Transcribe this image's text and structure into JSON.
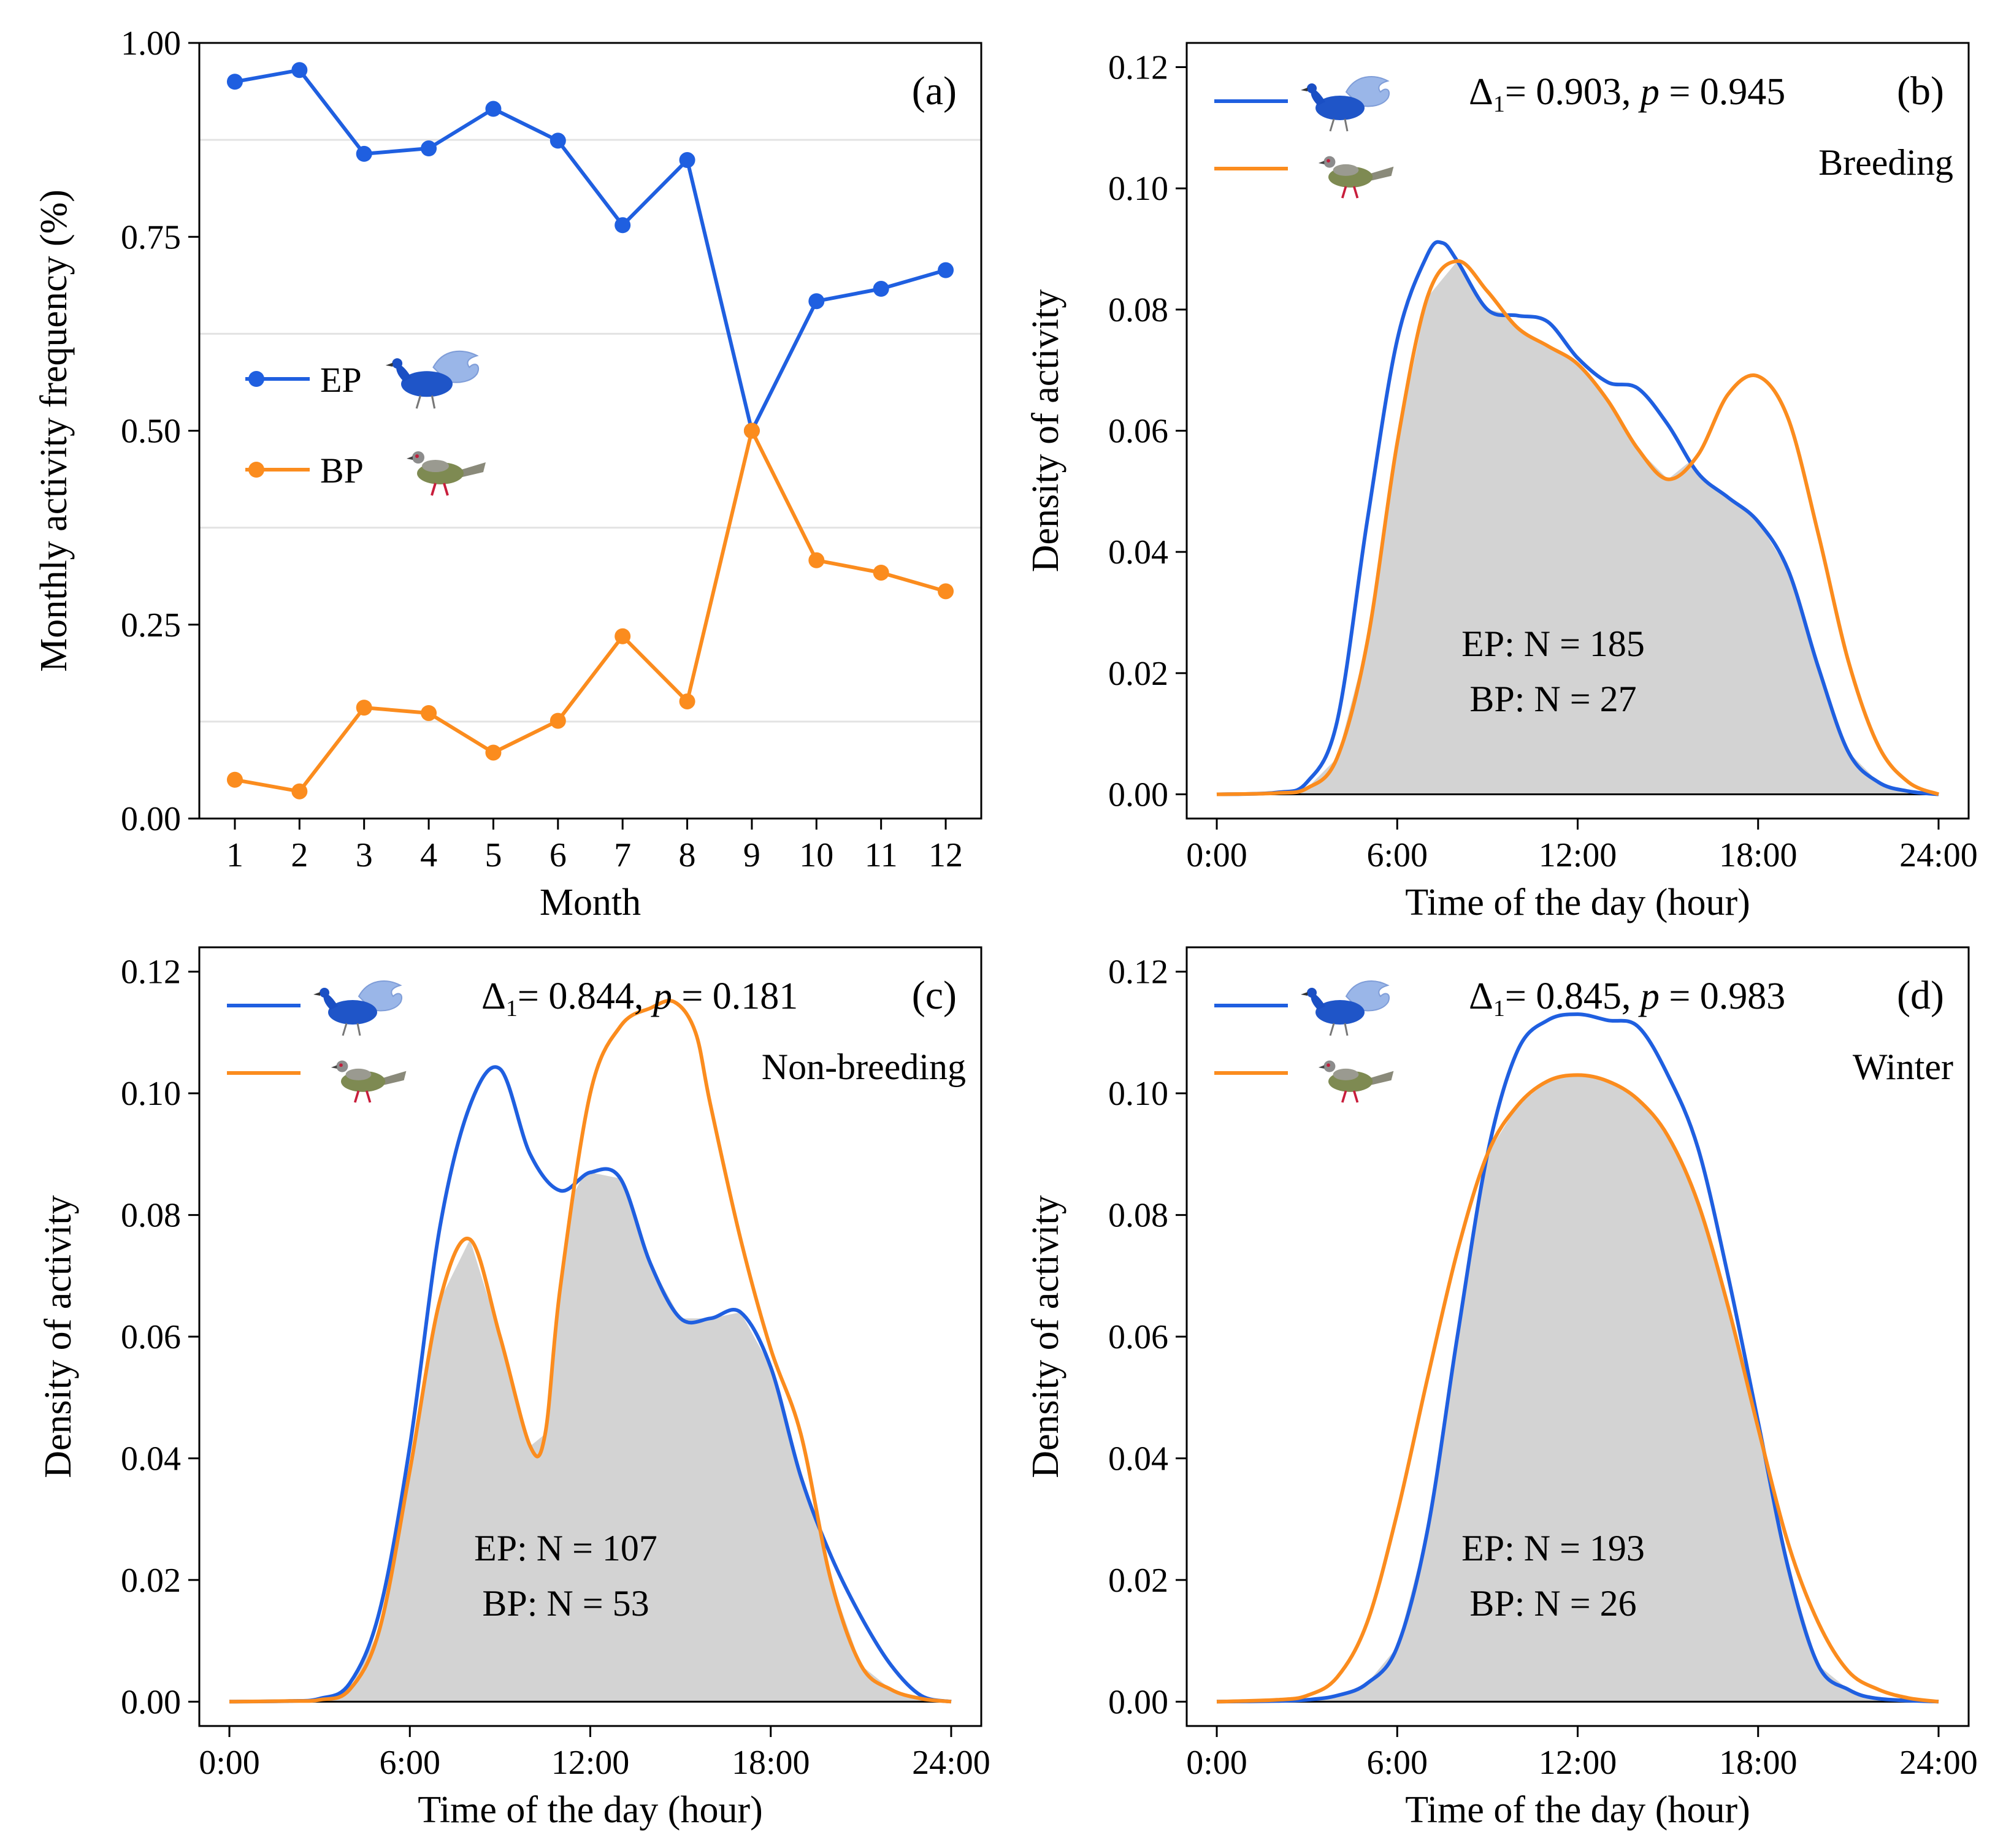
{
  "colors": {
    "ep": "#1f5fe0",
    "bp": "#fb8c1e",
    "overlap": "#d3d3d3",
    "grid": "#e3e3e3",
    "axis": "#000000"
  },
  "icons": {
    "ep": "blue-peafowl-icon",
    "bp": "grey-pheasant-icon"
  },
  "chart_data": [
    {
      "id": "a",
      "type": "line",
      "panel_label": "(a)",
      "xlabel": "Month",
      "ylabel": "Monthly activity frequency (%)",
      "categories": [
        "1",
        "2",
        "3",
        "4",
        "5",
        "6",
        "7",
        "8",
        "9",
        "10",
        "11",
        "12"
      ],
      "xlim": [
        0.45,
        12.55
      ],
      "ylim": [
        0,
        1
      ],
      "yticks": [
        "0.00",
        "0.25",
        "0.50",
        "0.75",
        "1.00"
      ],
      "grid_minor_y": [
        0.125,
        0.375,
        0.625,
        0.875
      ],
      "legend": {
        "placement": "center-left",
        "entries": [
          "EP",
          "BP"
        ]
      },
      "series": [
        {
          "name": "EP",
          "values": [
            0.95,
            0.965,
            0.857,
            0.864,
            0.915,
            0.874,
            0.765,
            0.849,
            0.5,
            0.667,
            0.683,
            0.707
          ]
        },
        {
          "name": "BP",
          "values": [
            0.05,
            0.035,
            0.143,
            0.136,
            0.085,
            0.126,
            0.235,
            0.151,
            0.5,
            0.333,
            0.317,
            0.293
          ]
        }
      ]
    },
    {
      "id": "b",
      "type": "area",
      "panel_label": "(b)",
      "season": "Breeding",
      "overlap_text": "= 0.903, ",
      "p_text": " = 0.945",
      "n_text": [
        "EP: N = 185",
        "BP: N = 27"
      ],
      "xlabel": "Time of the day (hour)",
      "ylabel": "Density of activity",
      "xticks": [
        "0:00",
        "6:00",
        "12:00",
        "18:00",
        "24:00"
      ],
      "xlim": [
        -1.0,
        25.0
      ],
      "ylim": [
        -0.004,
        0.124
      ],
      "yticks": [
        "0.00",
        "0.02",
        "0.04",
        "0.06",
        "0.08",
        "0.10",
        "0.12"
      ],
      "series": [
        {
          "name": "EP",
          "points": [
            [
              0,
              0
            ],
            [
              2,
              0.0003
            ],
            [
              3,
              0.002
            ],
            [
              4,
              0.012
            ],
            [
              5,
              0.045
            ],
            [
              6,
              0.075
            ],
            [
              7,
              0.089
            ],
            [
              7.5,
              0.091
            ],
            [
              8,
              0.088
            ],
            [
              9,
              0.08
            ],
            [
              10,
              0.079
            ],
            [
              11,
              0.078
            ],
            [
              12,
              0.072
            ],
            [
              13,
              0.068
            ],
            [
              14,
              0.067
            ],
            [
              15,
              0.061
            ],
            [
              16,
              0.053
            ],
            [
              17,
              0.049
            ],
            [
              18,
              0.045
            ],
            [
              19,
              0.037
            ],
            [
              20,
              0.021
            ],
            [
              21,
              0.007
            ],
            [
              22,
              0.002
            ],
            [
              23,
              0.0005
            ],
            [
              24,
              0
            ]
          ]
        },
        {
          "name": "BP",
          "points": [
            [
              0,
              0
            ],
            [
              2,
              0.0002
            ],
            [
              3,
              0.001
            ],
            [
              4,
              0.006
            ],
            [
              5,
              0.025
            ],
            [
              6,
              0.058
            ],
            [
              7,
              0.082
            ],
            [
              8,
              0.088
            ],
            [
              9,
              0.083
            ],
            [
              10,
              0.077
            ],
            [
              11,
              0.074
            ],
            [
              12,
              0.071
            ],
            [
              13,
              0.065
            ],
            [
              14,
              0.057
            ],
            [
              15,
              0.052
            ],
            [
              16,
              0.056
            ],
            [
              17,
              0.066
            ],
            [
              18,
              0.069
            ],
            [
              19,
              0.062
            ],
            [
              20,
              0.043
            ],
            [
              21,
              0.022
            ],
            [
              22,
              0.008
            ],
            [
              23,
              0.002
            ],
            [
              24,
              0
            ]
          ]
        }
      ]
    },
    {
      "id": "c",
      "type": "area",
      "panel_label": "(c)",
      "season": "Non-breeding",
      "overlap_text": "= 0.844, ",
      "p_text": " = 0.181",
      "n_text": [
        "EP: N = 107",
        "BP: N = 53"
      ],
      "xlabel": "Time of the day (hour)",
      "ylabel": "Density of activity",
      "xticks": [
        "0:00",
        "6:00",
        "12:00",
        "18:00",
        "24:00"
      ],
      "xlim": [
        -1.0,
        25.0
      ],
      "ylim": [
        -0.004,
        0.124
      ],
      "yticks": [
        "0.00",
        "0.02",
        "0.04",
        "0.06",
        "0.08",
        "0.10",
        "0.12"
      ],
      "series": [
        {
          "name": "EP",
          "points": [
            [
              0,
              0
            ],
            [
              2,
              0.0001
            ],
            [
              3,
              0.0005
            ],
            [
              4,
              0.003
            ],
            [
              5,
              0.015
            ],
            [
              6,
              0.042
            ],
            [
              7,
              0.078
            ],
            [
              8,
              0.098
            ],
            [
              9,
              0.104
            ],
            [
              10,
              0.09
            ],
            [
              11,
              0.084
            ],
            [
              12,
              0.087
            ],
            [
              13,
              0.086
            ],
            [
              14,
              0.072
            ],
            [
              15,
              0.063
            ],
            [
              16,
              0.063
            ],
            [
              17,
              0.064
            ],
            [
              18,
              0.055
            ],
            [
              19,
              0.037
            ],
            [
              20,
              0.024
            ],
            [
              21,
              0.014
            ],
            [
              22,
              0.006
            ],
            [
              23,
              0.001
            ],
            [
              24,
              0
            ]
          ]
        },
        {
          "name": "BP",
          "points": [
            [
              0,
              0
            ],
            [
              2,
              0.0001
            ],
            [
              3,
              0.0003
            ],
            [
              4,
              0.002
            ],
            [
              5,
              0.012
            ],
            [
              6,
              0.038
            ],
            [
              7,
              0.066
            ],
            [
              8,
              0.076
            ],
            [
              9,
              0.06
            ],
            [
              10,
              0.042
            ],
            [
              10.5,
              0.044
            ],
            [
              11,
              0.068
            ],
            [
              12,
              0.1
            ],
            [
              13,
              0.111
            ],
            [
              14,
              0.114
            ],
            [
              14.8,
              0.115
            ],
            [
              15.5,
              0.11
            ],
            [
              16,
              0.098
            ],
            [
              17,
              0.076
            ],
            [
              18,
              0.058
            ],
            [
              19,
              0.044
            ],
            [
              20,
              0.02
            ],
            [
              21,
              0.006
            ],
            [
              22,
              0.002
            ],
            [
              23,
              0.0005
            ],
            [
              24,
              0
            ]
          ]
        }
      ]
    },
    {
      "id": "d",
      "type": "area",
      "panel_label": "(d)",
      "season": "Winter",
      "overlap_text": "= 0.845, ",
      "p_text": " = 0.983",
      "n_text": [
        "EP: N = 193",
        "BP: N = 26"
      ],
      "xlabel": "Time of the day (hour)",
      "ylabel": "Density of activity",
      "xticks": [
        "0:00",
        "6:00",
        "12:00",
        "18:00",
        "24:00"
      ],
      "xlim": [
        -1.0,
        25.0
      ],
      "ylim": [
        -0.004,
        0.124
      ],
      "yticks": [
        "0.00",
        "0.02",
        "0.04",
        "0.06",
        "0.08",
        "0.10",
        "0.12"
      ],
      "series": [
        {
          "name": "EP",
          "points": [
            [
              0,
              0
            ],
            [
              2,
              0.0001
            ],
            [
              3,
              0.0003
            ],
            [
              4,
              0.001
            ],
            [
              5,
              0.003
            ],
            [
              6,
              0.009
            ],
            [
              7,
              0.028
            ],
            [
              8,
              0.06
            ],
            [
              9,
              0.09
            ],
            [
              10,
              0.107
            ],
            [
              11,
              0.112
            ],
            [
              12,
              0.113
            ],
            [
              13,
              0.112
            ],
            [
              14,
              0.111
            ],
            [
              15,
              0.103
            ],
            [
              16,
              0.091
            ],
            [
              17,
              0.07
            ],
            [
              18,
              0.046
            ],
            [
              19,
              0.022
            ],
            [
              20,
              0.006
            ],
            [
              21,
              0.002
            ],
            [
              22,
              0.0005
            ],
            [
              24,
              0
            ]
          ]
        },
        {
          "name": "BP",
          "points": [
            [
              0,
              0
            ],
            [
              2,
              0.0003
            ],
            [
              3,
              0.001
            ],
            [
              4,
              0.004
            ],
            [
              5,
              0.013
            ],
            [
              6,
              0.031
            ],
            [
              7,
              0.053
            ],
            [
              8,
              0.074
            ],
            [
              9,
              0.09
            ],
            [
              10,
              0.098
            ],
            [
              11,
              0.102
            ],
            [
              12,
              0.103
            ],
            [
              13,
              0.102
            ],
            [
              14,
              0.099
            ],
            [
              15,
              0.093
            ],
            [
              16,
              0.082
            ],
            [
              17,
              0.065
            ],
            [
              18,
              0.045
            ],
            [
              19,
              0.026
            ],
            [
              20,
              0.013
            ],
            [
              21,
              0.005
            ],
            [
              22,
              0.002
            ],
            [
              23,
              0.0006
            ],
            [
              24,
              0
            ]
          ]
        }
      ]
    }
  ]
}
